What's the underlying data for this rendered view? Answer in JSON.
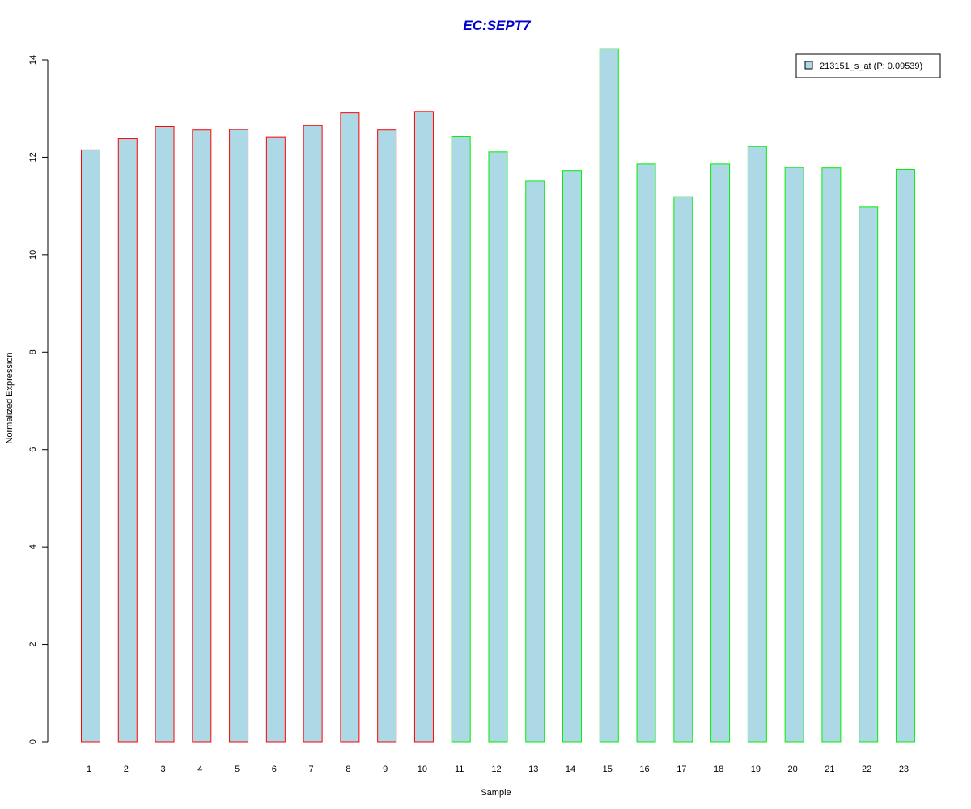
{
  "chart_data": {
    "type": "bar",
    "title": "EC:SEPT7",
    "xlabel": "Sample",
    "ylabel": "Normalized Expression",
    "ylim": [
      0,
      14
    ],
    "yticks": [
      0,
      2,
      4,
      6,
      8,
      10,
      12,
      14
    ],
    "grid": false,
    "legend_position": "top-right",
    "categories": [
      "1",
      "2",
      "3",
      "4",
      "5",
      "6",
      "7",
      "8",
      "9",
      "10",
      "11",
      "12",
      "13",
      "14",
      "15",
      "16",
      "17",
      "18",
      "19",
      "20",
      "21",
      "22",
      "23"
    ],
    "series": [
      {
        "name": "213151_s_at (P: 0.09539)",
        "values": [
          12.15,
          12.38,
          12.63,
          12.56,
          12.57,
          12.42,
          12.65,
          12.91,
          12.56,
          12.94,
          12.43,
          12.11,
          11.51,
          11.73,
          14.23,
          11.86,
          11.19,
          11.86,
          12.22,
          11.79,
          11.78,
          10.98,
          11.75
        ]
      }
    ],
    "groups": [
      {
        "samples": [
          1,
          10
        ],
        "border_color": "#ff0000"
      },
      {
        "samples": [
          11,
          23
        ],
        "border_color": "#00ee00"
      }
    ],
    "colors": {
      "bar_fill": "#add8e6",
      "title": "#0000cd",
      "group1_border": "#ff0000",
      "group2_border": "#00ee00"
    }
  }
}
